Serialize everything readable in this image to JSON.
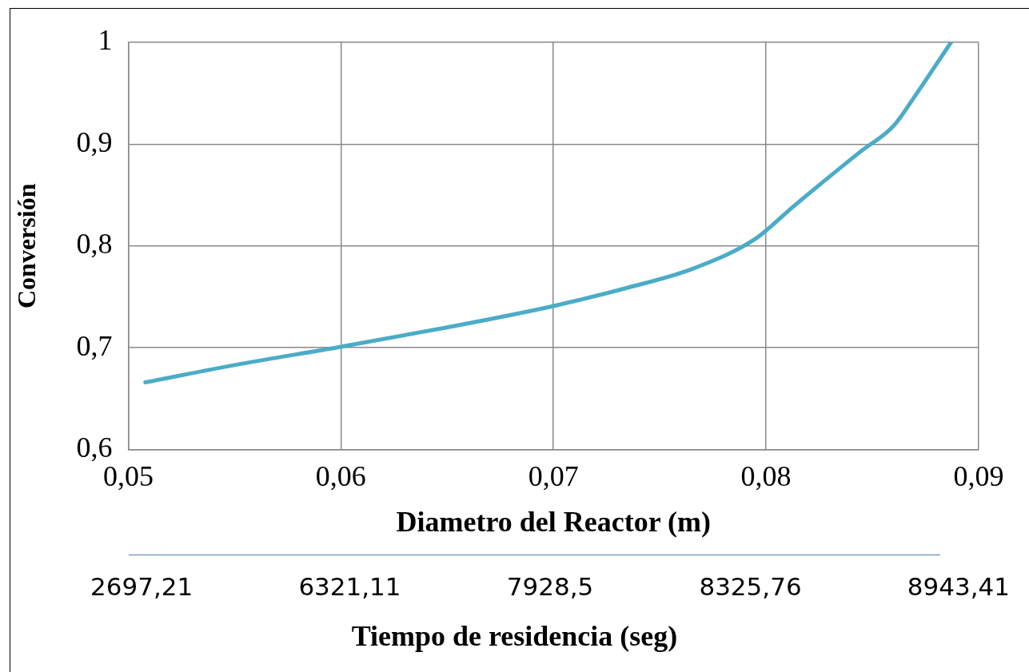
{
  "chart_data": {
    "type": "line",
    "xlabel": "Diametro del Reactor (m)",
    "ylabel": "Conversión",
    "x": [
      0.0508,
      0.055,
      0.06,
      0.065,
      0.07,
      0.0735,
      0.0766,
      0.0795,
      0.0813,
      0.0844,
      0.086,
      0.0869,
      0.0887
    ],
    "series": [
      {
        "color": "#4bacc6",
        "values": [
          0.666,
          0.683,
          0.701,
          0.72,
          0.741,
          0.759,
          0.778,
          0.807,
          0.839,
          0.892,
          0.918,
          0.944,
          1.0
        ]
      }
    ],
    "xlim": [
      0.05,
      0.09
    ],
    "xticks": [
      {
        "value": 0.05,
        "label": "0,05"
      },
      {
        "value": 0.06,
        "label": "0,06"
      },
      {
        "value": 0.07,
        "label": "0,07"
      },
      {
        "value": 0.08,
        "label": "0,08"
      },
      {
        "value": 0.09,
        "label": "0,09"
      }
    ],
    "ylim": [
      0.6,
      1
    ],
    "yticks": [
      {
        "value": 0.6,
        "label": "0,6"
      },
      {
        "value": 0.7,
        "label": "0,7"
      },
      {
        "value": 0.8,
        "label": "0,8"
      },
      {
        "value": 0.9,
        "label": "0,9"
      },
      {
        "value": 1,
        "label": "1"
      }
    ],
    "grid": true,
    "legend": false,
    "marker": "none",
    "line_style": "solid",
    "annotations": [
      "2697,21",
      "6321,11",
      "7928,5",
      "8325,76",
      "8943,41",
      "Tiempo de residencia (seg)"
    ]
  }
}
